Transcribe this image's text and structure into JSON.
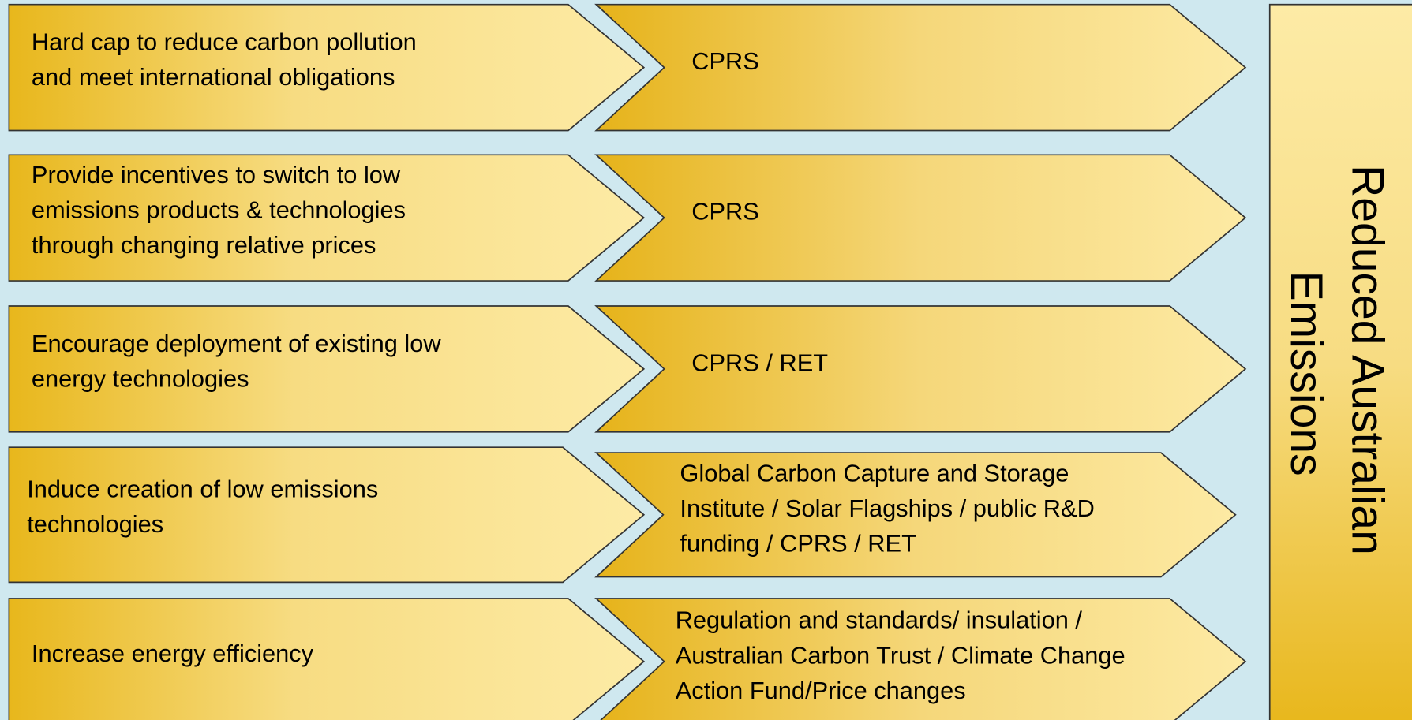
{
  "rows": [
    {
      "objective": [
        "Hard cap to reduce carbon pollution",
        "and meet international obligations"
      ],
      "measure": [
        "CPRS"
      ]
    },
    {
      "objective": [
        "Provide incentives to switch to low",
        "emissions products & technologies",
        "through changing relative prices"
      ],
      "measure": [
        "CPRS"
      ]
    },
    {
      "objective": [
        "Encourage deployment of existing low",
        "energy technologies"
      ],
      "measure": [
        "CPRS / RET"
      ]
    },
    {
      "objective": [
        "Induce creation of low emissions",
        "technologies"
      ],
      "measure": [
        "Global Carbon Capture and Storage",
        "Institute / Solar Flagships / public R&D",
        "funding / CPRS / RET"
      ]
    },
    {
      "objective": [
        "Increase energy efficiency"
      ],
      "measure": [
        "Regulation and standards/ insulation /",
        "Australian Carbon Trust / Climate Change",
        "Action Fund/Price changes"
      ]
    }
  ],
  "outcome": [
    "Reduced Australian",
    "Emissions"
  ]
}
